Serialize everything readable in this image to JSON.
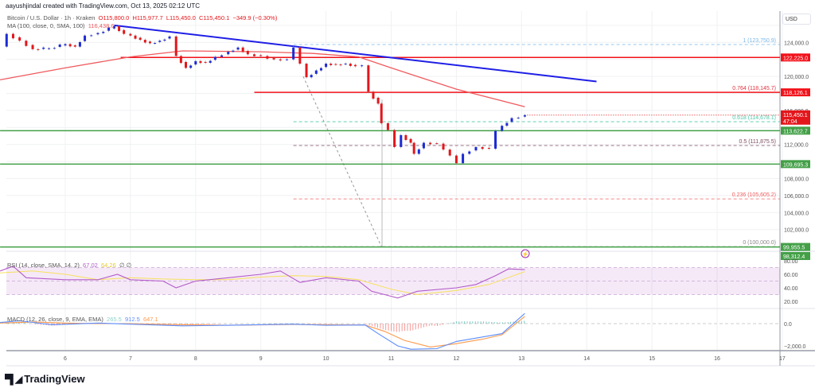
{
  "header": {
    "attribution": "aayushjindal created with TradingView.com, Oct 13, 2025 02:12 UTC",
    "symbol": "Bitcoin / U.S. Dollar · 1h · Kraken",
    "open": "O115,800.0",
    "high": "H115,977.7",
    "low": "L115,450.0",
    "close": "C115,450.1",
    "change": "−349.9 (−0.30%)",
    "ma_label": "MA (100, close, 0, SMA, 100)",
    "ma_value": "116,438.6"
  },
  "currency": "USD",
  "logo": "TradingView",
  "colors": {
    "up": "#1c2bd6",
    "down": "#e3161b",
    "ma": "#f05a5e",
    "trendline": "#1f1fe6",
    "support": "#43a047",
    "resistance": "#f2121a",
    "rsi": "#b35cc9",
    "rsi_ma": "#f7e15c",
    "macd": "#5c8dff",
    "signal": "#ff9a4d",
    "fib_1": "#7ab8e6",
    "fib_0764": "#e0313b",
    "fib_0618": "#4cc7a8",
    "fib_05": "#7d4a60",
    "fib_0236": "#f26060",
    "fib_0": "#888888"
  },
  "chart_data": {
    "type": "candlestick",
    "x_unit": "day of October 2025",
    "x_ticks": [
      "6",
      "7",
      "8",
      "9",
      "10",
      "11",
      "12",
      "13",
      "14",
      "15",
      "16",
      "17"
    ],
    "y_ticks": [
      "124,000.0",
      "120,000.0",
      "116,000.0",
      "112,000.0",
      "108,000.0",
      "106,000.0",
      "104,000.0",
      "102,000.0"
    ],
    "ylim": [
      99000,
      127500
    ],
    "grid": true,
    "price_closes": [
      [
        5.0,
        123500
      ],
      [
        5.1,
        125000
      ],
      [
        5.3,
        124200
      ],
      [
        5.5,
        123200
      ],
      [
        5.75,
        123300
      ],
      [
        6.0,
        123800
      ],
      [
        6.15,
        123500
      ],
      [
        6.3,
        124800
      ],
      [
        6.5,
        125100
      ],
      [
        6.75,
        125900
      ],
      [
        6.9,
        125000
      ],
      [
        7.0,
        124800
      ],
      [
        7.15,
        124300
      ],
      [
        7.3,
        123900
      ],
      [
        7.45,
        124200
      ],
      [
        7.6,
        124700
      ],
      [
        7.7,
        122400
      ],
      [
        7.85,
        121000
      ],
      [
        8.0,
        121800
      ],
      [
        8.15,
        121600
      ],
      [
        8.3,
        122300
      ],
      [
        8.5,
        122900
      ],
      [
        8.65,
        123400
      ],
      [
        8.8,
        122600
      ],
      [
        9.0,
        122400
      ],
      [
        9.2,
        122000
      ],
      [
        9.4,
        122000
      ],
      [
        9.5,
        123400
      ],
      [
        9.6,
        121500
      ],
      [
        9.7,
        119900
      ],
      [
        9.85,
        120700
      ],
      [
        10.0,
        121500
      ],
      [
        10.15,
        121400
      ],
      [
        10.3,
        121500
      ],
      [
        10.45,
        121200
      ],
      [
        10.55,
        121300
      ],
      [
        10.65,
        118200
      ],
      [
        10.8,
        116800
      ],
      [
        10.85,
        114500
      ],
      [
        10.95,
        113700
      ],
      [
        11.05,
        111700
      ],
      [
        11.15,
        113100
      ],
      [
        11.3,
        112200
      ],
      [
        11.35,
        110900
      ],
      [
        11.5,
        112200
      ],
      [
        11.7,
        112100
      ],
      [
        11.8,
        111400
      ],
      [
        11.9,
        110700
      ],
      [
        12.0,
        109800
      ],
      [
        12.1,
        110900
      ],
      [
        12.3,
        111700
      ],
      [
        12.5,
        111500
      ],
      [
        12.6,
        113600
      ],
      [
        12.7,
        114200
      ],
      [
        12.85,
        115100
      ],
      [
        13.05,
        115450
      ]
    ],
    "ma100": [
      [
        5.0,
        119600
      ],
      [
        6.0,
        121000
      ],
      [
        7.0,
        122300
      ],
      [
        7.8,
        123000
      ],
      [
        9.0,
        122900
      ],
      [
        9.8,
        122700
      ],
      [
        10.5,
        122300
      ],
      [
        11.0,
        121000
      ],
      [
        12.0,
        118500
      ],
      [
        13.05,
        116440
      ]
    ],
    "trendline": [
      [
        6.75,
        126000
      ],
      [
        14.15,
        119400
      ]
    ],
    "horizontal_levels": [
      {
        "price": 122225.0,
        "label": "122,225.0",
        "kind": "resistance",
        "from_day": 6.85
      },
      {
        "price": 118126.1,
        "label": "118,126.1",
        "kind": "resistance",
        "from_day": 8.9
      },
      {
        "price": 113622.7,
        "label": "113,622.7",
        "kind": "support",
        "from_day": 5.0
      },
      {
        "price": 109695.3,
        "label": "109,695.3",
        "kind": "support",
        "from_day": 5.0
      },
      {
        "price": 99955.5,
        "label": "99,955.5",
        "kind": "support",
        "from_day": 5.0
      }
    ],
    "fib_levels": [
      {
        "ratio": "1",
        "price": 123750.9,
        "label": "1 (123,750.9)",
        "color": "fib_1"
      },
      {
        "ratio": "0.764",
        "price": 118145.7,
        "label": "0.764 (118,145.7)",
        "color": "fib_0764"
      },
      {
        "ratio": "0.618",
        "price": 114678.1,
        "label": "0.618 (114,678.1)",
        "color": "fib_0618"
      },
      {
        "ratio": "0.5",
        "price": 111875.5,
        "label": "0.5 (111,875.5)",
        "color": "fib_05"
      },
      {
        "ratio": "0.236",
        "price": 105605.2,
        "label": "0.236 (105,605.2)",
        "color": "fib_0236"
      },
      {
        "ratio": "0",
        "price": 100000.0,
        "label": "0 (100,000.0)",
        "color": "fib_0"
      }
    ],
    "fib_from_day": 9.5,
    "fib_anchor_line": [
      [
        9.65,
        120000
      ],
      [
        10.85,
        100000
      ]
    ],
    "current_price": {
      "label": "115,450.1",
      "countdown": "47:04"
    },
    "extra_badge": "98,312.4",
    "rsi": {
      "legend": "RSI (14, close, SMA, 14, 2)",
      "value": "67.02",
      "ma_value": "64.26",
      "extra": "∅ ∅",
      "ticks": [
        "80.00",
        "60.00",
        "40.00",
        "20.00"
      ],
      "band": [
        30,
        70
      ],
      "values": [
        [
          5.0,
          65
        ],
        [
          5.2,
          72
        ],
        [
          5.4,
          55
        ],
        [
          6.0,
          52
        ],
        [
          6.5,
          52
        ],
        [
          6.8,
          60
        ],
        [
          7.0,
          52
        ],
        [
          7.5,
          50
        ],
        [
          7.7,
          40
        ],
        [
          8.0,
          50
        ],
        [
          8.5,
          55
        ],
        [
          9.0,
          60
        ],
        [
          9.3,
          65
        ],
        [
          9.6,
          48
        ],
        [
          10.0,
          55
        ],
        [
          10.5,
          50
        ],
        [
          10.7,
          35
        ],
        [
          10.9,
          30
        ],
        [
          11.1,
          25
        ],
        [
          11.4,
          35
        ],
        [
          12.0,
          40
        ],
        [
          12.3,
          45
        ],
        [
          12.6,
          58
        ],
        [
          12.8,
          68
        ],
        [
          13.05,
          67
        ]
      ],
      "ma": [
        [
          5.0,
          62
        ],
        [
          5.5,
          65
        ],
        [
          6.0,
          60
        ],
        [
          6.5,
          52
        ],
        [
          7.0,
          55
        ],
        [
          7.5,
          53
        ],
        [
          8.0,
          52
        ],
        [
          8.5,
          52
        ],
        [
          9.0,
          56
        ],
        [
          9.5,
          58
        ],
        [
          10.0,
          57
        ],
        [
          10.5,
          52
        ],
        [
          11.0,
          38
        ],
        [
          11.4,
          30
        ],
        [
          12.0,
          36
        ],
        [
          12.5,
          45
        ],
        [
          13.05,
          64
        ]
      ]
    },
    "macd": {
      "legend": "MACD (12, 26, close, 9, EMA, EMA)",
      "hist_value": "265.5",
      "macd_value": "912.5",
      "signal_value": "647.1",
      "ticks": [
        "0.0",
        "−2,000.0"
      ],
      "macd_line": [
        [
          5.0,
          100
        ],
        [
          5.3,
          250
        ],
        [
          5.8,
          -100
        ],
        [
          6.5,
          50
        ],
        [
          7.0,
          -50
        ],
        [
          7.8,
          -200
        ],
        [
          8.5,
          -150
        ],
        [
          9.5,
          -50
        ],
        [
          10.0,
          -150
        ],
        [
          10.6,
          -120
        ],
        [
          10.8,
          -900
        ],
        [
          11.1,
          -2000
        ],
        [
          11.3,
          -2300
        ],
        [
          11.7,
          -2250
        ],
        [
          12.0,
          -1600
        ],
        [
          12.4,
          -1200
        ],
        [
          12.7,
          -900
        ],
        [
          13.05,
          912
        ]
      ],
      "signal_line": [
        [
          5.0,
          50
        ],
        [
          5.5,
          150
        ],
        [
          6.0,
          50
        ],
        [
          6.5,
          0
        ],
        [
          7.0,
          0
        ],
        [
          7.8,
          -100
        ],
        [
          8.5,
          -150
        ],
        [
          9.5,
          -80
        ],
        [
          10.0,
          -100
        ],
        [
          10.6,
          -120
        ],
        [
          10.9,
          -700
        ],
        [
          11.2,
          -1500
        ],
        [
          11.6,
          -2100
        ],
        [
          12.0,
          -1800
        ],
        [
          12.4,
          -1400
        ],
        [
          12.7,
          -1000
        ],
        [
          13.05,
          647
        ]
      ]
    }
  }
}
